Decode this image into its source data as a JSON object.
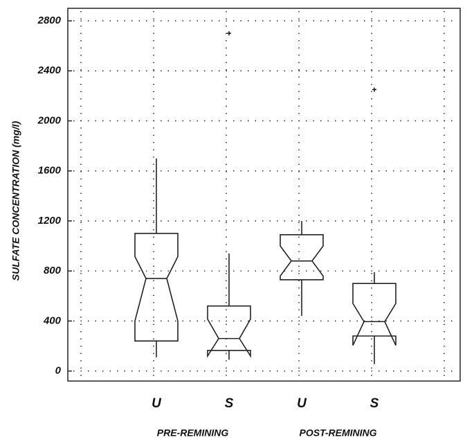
{
  "chart_data": {
    "type": "box",
    "y_label": "SULFATE CONCENTRATION (mg/l)",
    "categories": [
      "U",
      "S",
      "U",
      "S"
    ],
    "groups": [
      {
        "label": "PRE-REMINING",
        "members": [
          0,
          1
        ]
      },
      {
        "label": "POST-REMINING",
        "members": [
          2,
          3
        ]
      }
    ],
    "boxes": [
      {
        "whisker_low": 110,
        "q1": 240,
        "notch_low": 400,
        "median": 740,
        "notch_high": 915,
        "q3": 1100,
        "whisker_high": 1700,
        "outliers": []
      },
      {
        "whisker_low": 90,
        "q1": 165,
        "notch_low": 120,
        "median": 260,
        "notch_high": 415,
        "q3": 520,
        "whisker_high": 940,
        "outliers": [
          2700
        ]
      },
      {
        "whisker_low": 440,
        "q1": 730,
        "notch_low": 760,
        "median": 880,
        "notch_high": 1000,
        "q3": 1090,
        "whisker_high": 1200,
        "outliers": []
      },
      {
        "whisker_low": 55,
        "q1": 280,
        "notch_low": 205,
        "median": 395,
        "notch_high": 540,
        "q3": 700,
        "whisker_high": 790,
        "outliers": [
          2250
        ]
      }
    ],
    "color": "#222222",
    "ylim": [
      -80,
      2900
    ],
    "yticks": [
      0,
      400,
      800,
      1200,
      1600,
      2000,
      2400,
      2800
    ],
    "grid": true
  }
}
